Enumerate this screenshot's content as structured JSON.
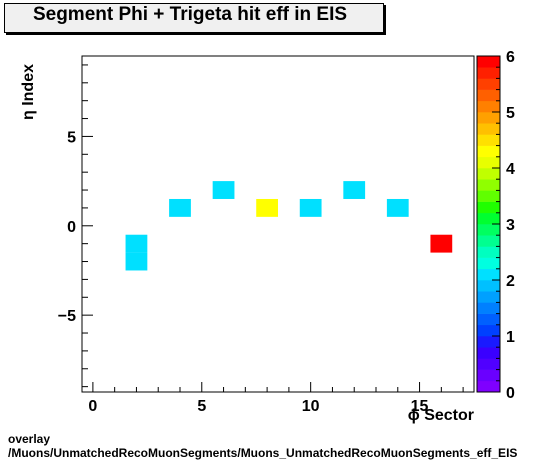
{
  "title": "Segment Phi + Trigeta hit eff in EIS",
  "footer": {
    "line1": "overlay",
    "line2": "/Muons/UnmatchedRecoMuonSegments/Muons_UnmatchedRecoMuonSegments_eff_EIS"
  },
  "chart_data": {
    "type": "heatmap",
    "xlabel": "ϕ Sector",
    "ylabel": "η Index",
    "xlim": [
      -0.5,
      17.5
    ],
    "ylim": [
      -9.3,
      9.5
    ],
    "x_ticks": [
      0,
      5,
      10,
      15
    ],
    "y_ticks": [
      -5,
      0,
      5
    ],
    "z_range": [
      0,
      6
    ],
    "z_ticks": [
      0,
      1,
      2,
      3,
      4,
      5,
      6
    ],
    "cells": [
      {
        "x": 2,
        "y": -1,
        "value": 2.0
      },
      {
        "x": 2,
        "y": -2,
        "value": 2.0
      },
      {
        "x": 4,
        "y": 1,
        "value": 2.0
      },
      {
        "x": 6,
        "y": 2,
        "value": 2.0
      },
      {
        "x": 8,
        "y": 1,
        "value": 4.2
      },
      {
        "x": 10,
        "y": 1,
        "value": 2.0
      },
      {
        "x": 12,
        "y": 2,
        "value": 2.0
      },
      {
        "x": 14,
        "y": 1,
        "value": 2.0
      },
      {
        "x": 16,
        "y": -1,
        "value": 6.0
      }
    ],
    "palette": [
      "#7f00ff",
      "#6a00ff",
      "#5000ff",
      "#3a00ff",
      "#1a1aff",
      "#0040ff",
      "#0060ff",
      "#0080ff",
      "#00a0ff",
      "#00c0ff",
      "#00e0ff",
      "#00ffe0",
      "#00ffc0",
      "#00ff90",
      "#00ff60",
      "#00ff30",
      "#20ff00",
      "#60ff00",
      "#90ff00",
      "#c0ff00",
      "#e8ff00",
      "#ffff00",
      "#ffe000",
      "#ffc000",
      "#ffa000",
      "#ff8000",
      "#ff6000",
      "#ff4000",
      "#ff2000",
      "#ff0000"
    ]
  }
}
